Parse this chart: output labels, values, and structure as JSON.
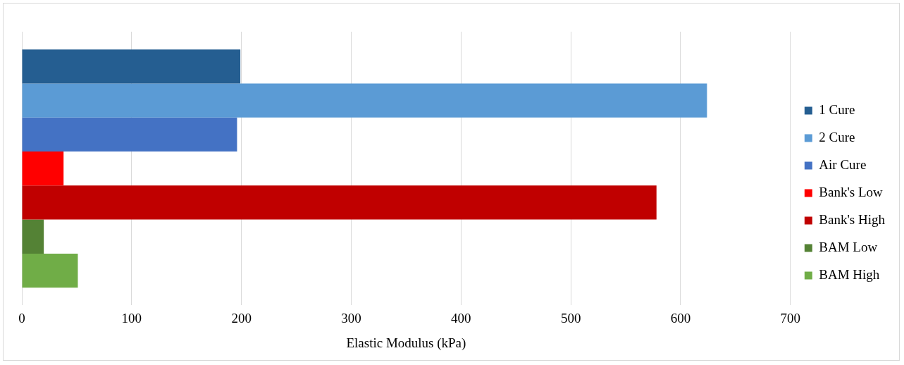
{
  "chart_data": {
    "type": "bar",
    "orientation": "horizontal",
    "xlabel": "Elastic Modulus (kPa)",
    "categories": [
      null
    ],
    "series": [
      {
        "name": "1 Cure",
        "color": "#255e91",
        "values": [
          199
        ]
      },
      {
        "name": "2 Cure",
        "color": "#5b9bd5",
        "values": [
          624
        ]
      },
      {
        "name": "Air Cure",
        "color": "#4472c4",
        "values": [
          196
        ]
      },
      {
        "name": "Bank's Low",
        "color": "#ff0000",
        "values": [
          38
        ]
      },
      {
        "name": "Bank's High",
        "color": "#c00000",
        "values": [
          578
        ]
      },
      {
        "name": "BAM Low",
        "color": "#548235",
        "values": [
          20
        ]
      },
      {
        "name": "BAM High",
        "color": "#70ad47",
        "values": [
          51
        ]
      }
    ],
    "xlim": [
      0,
      700
    ],
    "xticks": [
      0,
      100,
      200,
      300,
      400,
      500,
      600,
      700
    ],
    "grid": "x",
    "legend": "right"
  }
}
